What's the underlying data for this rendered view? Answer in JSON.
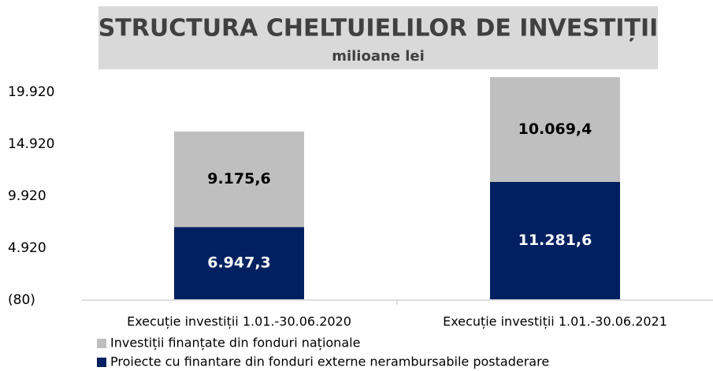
{
  "chart_data": {
    "type": "stacked_bar",
    "title": "STRUCTURA CHELTUIELILOR DE INVESTIȚII",
    "subtitle": "milioane lei",
    "categories": [
      "Execuție investiții 1.01.-30.06.2020",
      "Execuție investiții 1.01.-30.06.2021"
    ],
    "series": [
      {
        "name": "Proiecte cu finantare din fonduri externe nerambursabile postaderare",
        "color": "#002060",
        "values": [
          6947.3,
          11281.6
        ],
        "value_labels": [
          "6.947,3",
          "11.281,6"
        ]
      },
      {
        "name": "Investiții finanțate din fonduri naționale",
        "color": "#bfbfbf",
        "values": [
          9175.6,
          10069.4
        ],
        "value_labels": [
          "9.175,6",
          "10.069,4"
        ]
      }
    ],
    "ylim": [
      -80,
      21500
    ],
    "yticks": [
      {
        "value": -80,
        "label": "(80)"
      },
      {
        "value": 4920,
        "label": "4.920"
      },
      {
        "value": 9920,
        "label": "9.920"
      },
      {
        "value": 14920,
        "label": "14.920"
      },
      {
        "value": 19920,
        "label": "19.920"
      }
    ],
    "legend": "bottom"
  }
}
